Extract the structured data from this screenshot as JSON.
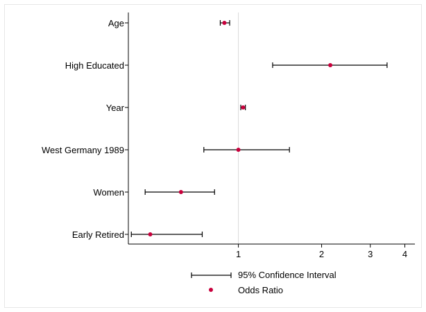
{
  "chart_data": {
    "type": "scatter",
    "xscale": "log",
    "xlim": [
      0.4,
      4.4
    ],
    "xticks": [
      "1",
      "2",
      "3",
      "4"
    ],
    "reference_x": 1,
    "grid": false,
    "legend_placement": "bottom",
    "colors": {
      "point": "#c8003c",
      "interval": "#000000",
      "reference": "#d9d9d9"
    },
    "categories": [
      "Age",
      "High Educated",
      "Year",
      "West Germany 1989",
      "Women",
      "Early Retired"
    ],
    "series": [
      {
        "name": "Odds Ratio",
        "values": [
          0.89,
          2.15,
          1.04,
          1.0,
          0.62,
          0.48
        ]
      },
      {
        "name": "95% Confidence Interval",
        "intervals": [
          [
            0.86,
            0.93
          ],
          [
            1.33,
            3.45
          ],
          [
            1.02,
            1.06
          ],
          [
            0.75,
            1.53
          ],
          [
            0.46,
            0.82
          ],
          [
            0.41,
            0.74
          ]
        ]
      }
    ]
  }
}
